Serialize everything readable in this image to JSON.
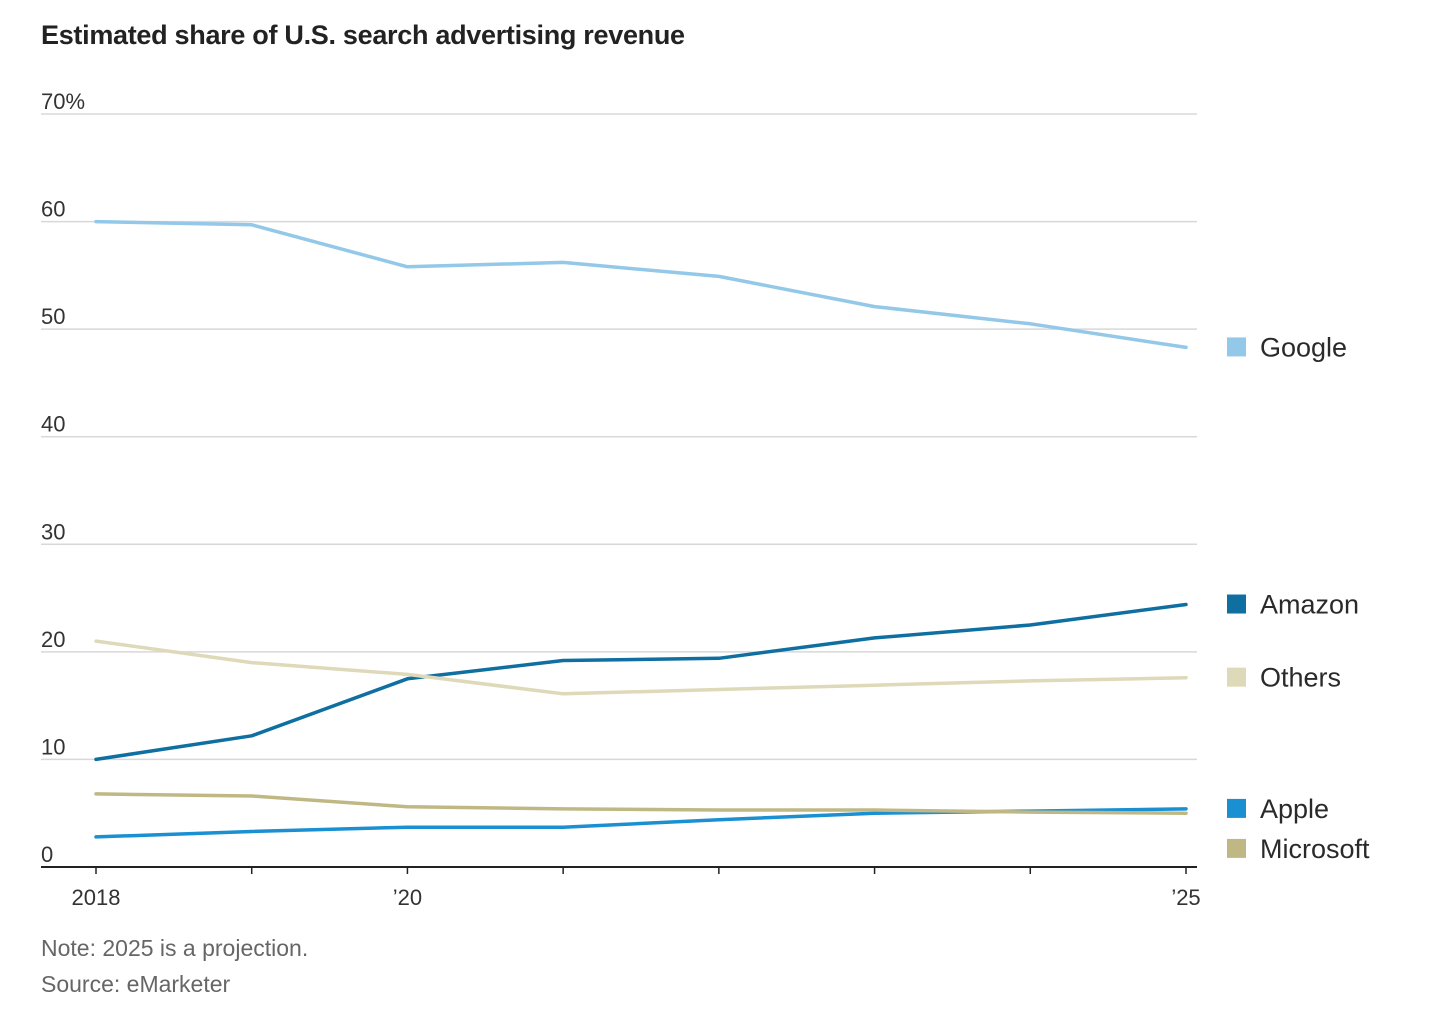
{
  "title": "Estimated share of U.S. search advertising revenue",
  "notes": {
    "note": "Note: 2025 is a projection.",
    "source": "Source: eMarketer"
  },
  "chart_data": {
    "type": "line",
    "title": "Estimated share of U.S. search advertising revenue",
    "xlabel": "",
    "ylabel": "",
    "x": [
      2018,
      2019,
      2020,
      2021,
      2022,
      2023,
      2024,
      2025
    ],
    "x_tick_labels": [
      {
        "x": 2018,
        "label": "2018"
      },
      {
        "x": 2020,
        "label": "’20"
      },
      {
        "x": 2025,
        "label": "’25"
      }
    ],
    "y_ticks": [
      {
        "value": 0,
        "label": "0"
      },
      {
        "value": 10,
        "label": "10"
      },
      {
        "value": 20,
        "label": "20"
      },
      {
        "value": 30,
        "label": "30"
      },
      {
        "value": 40,
        "label": "40"
      },
      {
        "value": 50,
        "label": "50"
      },
      {
        "value": 60,
        "label": "60"
      },
      {
        "value": 70,
        "label": "70%"
      }
    ],
    "ylim": [
      0,
      70
    ],
    "grid": true,
    "legend_placement": "right, at line ends",
    "series": [
      {
        "name": "Google",
        "color": "#93c8e8",
        "values": [
          60.0,
          59.7,
          55.8,
          56.2,
          54.9,
          52.1,
          50.5,
          48.3
        ]
      },
      {
        "name": "Amazon",
        "color": "#0e6fa0",
        "values": [
          10.0,
          12.2,
          17.5,
          19.2,
          19.4,
          21.3,
          22.5,
          24.4
        ]
      },
      {
        "name": "Others",
        "color": "#ded9b8",
        "values": [
          21.0,
          19.0,
          17.9,
          16.1,
          16.5,
          16.9,
          17.3,
          17.6
        ]
      },
      {
        "name": "Apple",
        "color": "#1a90d2",
        "values": [
          2.8,
          3.3,
          3.7,
          3.7,
          4.4,
          5.0,
          5.2,
          5.4
        ]
      },
      {
        "name": "Microsoft",
        "color": "#bfb885",
        "values": [
          6.8,
          6.6,
          5.6,
          5.4,
          5.3,
          5.3,
          5.1,
          5.0
        ]
      }
    ]
  }
}
